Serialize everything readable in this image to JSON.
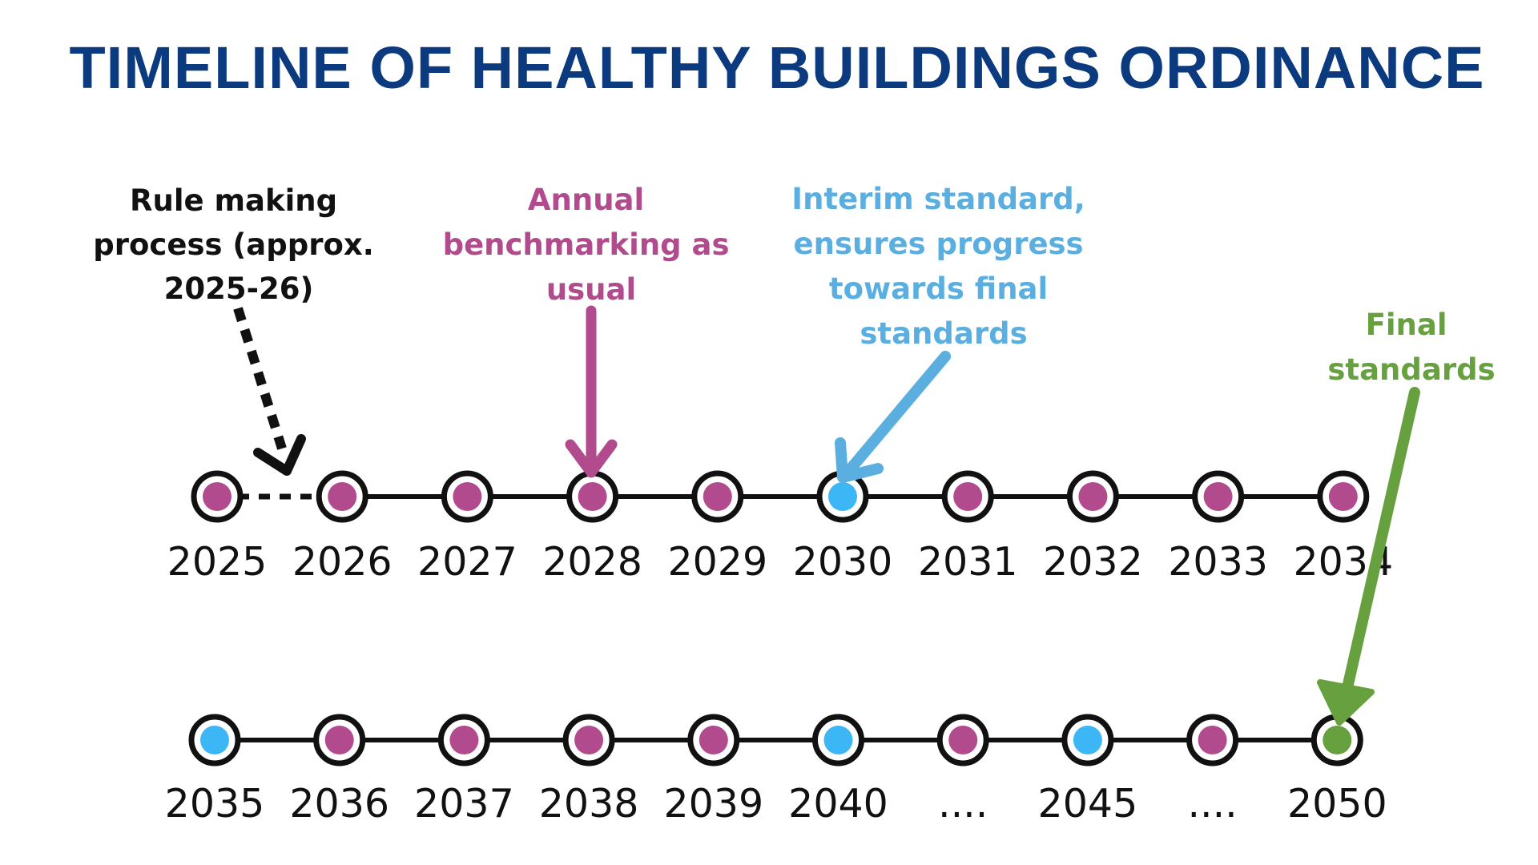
{
  "title": "TIMELINE OF HEALTHY BUILDINGS ORDINANCE",
  "colors": {
    "title": "#0b3a7e",
    "benchmark": "#b24a8e",
    "interim": "#3db6f5",
    "interim_text": "#5aafe0",
    "final": "#67a03e",
    "line": "#111111"
  },
  "legend_meaning": {
    "benchmark": "Annual benchmarking as usual",
    "interim": "Interim standard",
    "final": "Final standards"
  },
  "annotations": {
    "rule_making": [
      "Rule making",
      "process (approx.",
      "2025-26)"
    ],
    "benchmarking": [
      "Annual",
      "benchmarking as",
      "usual"
    ],
    "interim": [
      "Interim standard,",
      "ensures progress",
      "towards final",
      "standards"
    ],
    "final": [
      "Final",
      "standards"
    ]
  },
  "rows": [
    {
      "id": "row-1",
      "milestones": [
        {
          "label": "2025",
          "type": "benchmark"
        },
        {
          "label": "2026",
          "type": "benchmark"
        },
        {
          "label": "2027",
          "type": "benchmark"
        },
        {
          "label": "2028",
          "type": "benchmark"
        },
        {
          "label": "2029",
          "type": "benchmark"
        },
        {
          "label": "2030",
          "type": "interim"
        },
        {
          "label": "2031",
          "type": "benchmark"
        },
        {
          "label": "2032",
          "type": "benchmark"
        },
        {
          "label": "2033",
          "type": "benchmark"
        },
        {
          "label": "2034",
          "type": "benchmark"
        }
      ]
    },
    {
      "id": "row-2",
      "milestones": [
        {
          "label": "2035",
          "type": "interim"
        },
        {
          "label": "2036",
          "type": "benchmark"
        },
        {
          "label": "2037",
          "type": "benchmark"
        },
        {
          "label": "2038",
          "type": "benchmark"
        },
        {
          "label": "2039",
          "type": "benchmark"
        },
        {
          "label": "2040",
          "type": "interim"
        },
        {
          "label": "....",
          "type": "benchmark"
        },
        {
          "label": "2045",
          "type": "interim"
        },
        {
          "label": "....",
          "type": "benchmark"
        },
        {
          "label": "2050",
          "type": "final"
        }
      ]
    }
  ]
}
